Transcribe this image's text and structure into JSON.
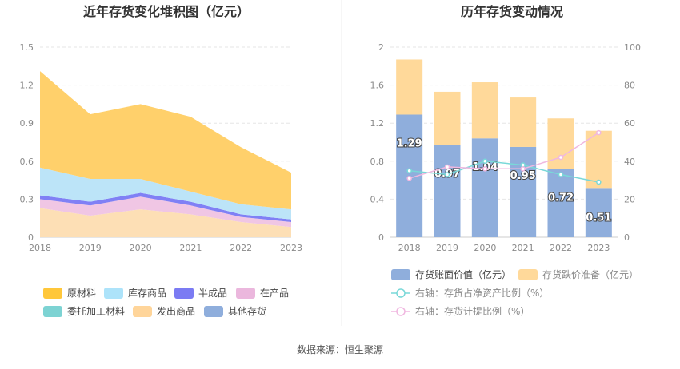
{
  "source_text": "数据来源：恒生聚源",
  "chart_data": [
    {
      "type": "area",
      "title": "近年存货变化堆积图（亿元）",
      "x": [
        "2018",
        "2019",
        "2020",
        "2021",
        "2022",
        "2023"
      ],
      "ylim": [
        0,
        1.5
      ],
      "yticks": [
        "0",
        "0.3",
        "0.6",
        "0.9",
        "1.2",
        "1.5"
      ],
      "stacked": true,
      "series": [
        {
          "name": "发出商品",
          "color": "#FDDFB5",
          "values": [
            0.23,
            0.17,
            0.22,
            0.18,
            0.12,
            0.08
          ]
        },
        {
          "name": "在产品",
          "color": "#F0C6E4",
          "values": [
            0.07,
            0.08,
            0.1,
            0.07,
            0.04,
            0.04
          ]
        },
        {
          "name": "半成品",
          "color": "#8080F5",
          "values": [
            0.03,
            0.03,
            0.03,
            0.03,
            0.02,
            0.02
          ]
        },
        {
          "name": "库存商品",
          "color": "#BCE4F8",
          "values": [
            0.22,
            0.18,
            0.11,
            0.08,
            0.08,
            0.08
          ]
        },
        {
          "name": "原材料",
          "color": "#FFD06B",
          "values": [
            0.76,
            0.51,
            0.59,
            0.59,
            0.45,
            0.29
          ]
        },
        {
          "name": "委托加工材料",
          "color": "#7DD3D3",
          "values": [
            0,
            0,
            0,
            0,
            0,
            0
          ]
        },
        {
          "name": "其他存货",
          "color": "#8FAEDC",
          "values": [
            0,
            0,
            0,
            0,
            0,
            0
          ]
        }
      ],
      "legend": [
        {
          "name": "原材料",
          "color": "#FFC73A"
        },
        {
          "name": "库存商品",
          "color": "#ADE3FA"
        },
        {
          "name": "半成品",
          "color": "#7B7BF3"
        },
        {
          "name": "在产品",
          "color": "#EBB7DD"
        },
        {
          "name": "委托加工材料",
          "color": "#7DD3D3"
        },
        {
          "name": "发出商品",
          "color": "#FFD59A"
        },
        {
          "name": "其他存货",
          "color": "#8FAEDC"
        }
      ],
      "legend_position": "bottom"
    },
    {
      "type": "bar",
      "title": "历年存货变动情况",
      "categories": [
        "2018",
        "2019",
        "2020",
        "2021",
        "2022",
        "2023"
      ],
      "ylim": [
        0,
        2
      ],
      "yticks": [
        "0",
        "0.4",
        "0.8",
        "1.2",
        "1.6",
        "2"
      ],
      "y2lim": [
        0,
        100
      ],
      "y2ticks": [
        "0",
        "20",
        "40",
        "60",
        "80",
        "100"
      ],
      "bar_series": [
        {
          "name": "存货账面价值（亿元）",
          "color": "#8FAEDC",
          "values": [
            1.29,
            0.97,
            1.04,
            0.95,
            0.72,
            0.51
          ],
          "labels": [
            "1.29",
            "0.97",
            "1.04",
            "0.95",
            "0.72",
            "0.51"
          ]
        },
        {
          "name": "存货跌价准备（亿元）",
          "color": "#FFD99A",
          "values": [
            0.58,
            0.56,
            0.59,
            0.52,
            0.53,
            0.61
          ]
        }
      ],
      "line_series": [
        {
          "name": "右轴：存货占净资产比例（%）",
          "color": "#79D8D8",
          "values": [
            35,
            33,
            40,
            38,
            33,
            29
          ]
        },
        {
          "name": "右轴：存货计提比例（%）",
          "color": "#F0B7E0",
          "values": [
            31,
            37,
            36,
            36,
            42,
            55
          ]
        }
      ],
      "legend_position": "bottom"
    }
  ]
}
